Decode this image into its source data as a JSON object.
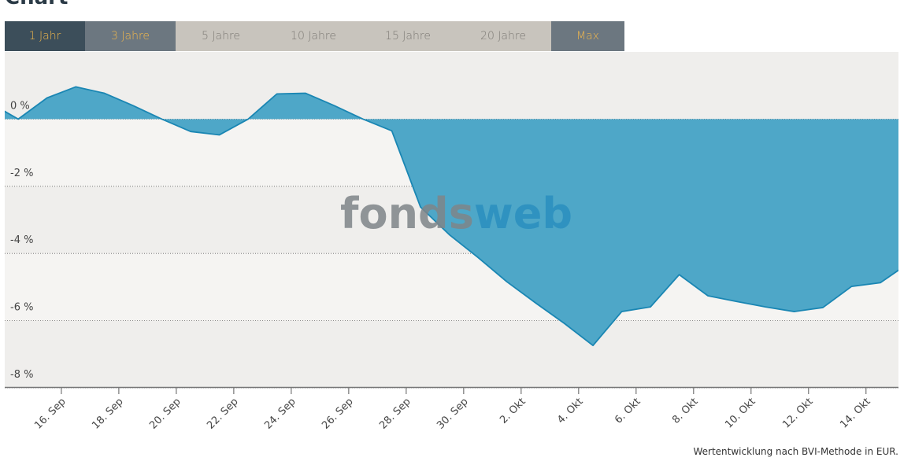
{
  "chart_data": {
    "type": "area",
    "title": "Chart",
    "buttons": [
      "1 Jahr",
      "3 Jahre",
      "5 Jahre",
      "10 Jahre",
      "15 Jahre",
      "20 Jahre",
      "Max"
    ],
    "watermark": [
      "fonds",
      "web"
    ],
    "footnote": "Wertentwicklung nach BVI-Methode in EUR.",
    "x": [
      -1,
      0,
      1,
      2,
      3,
      4,
      5,
      6,
      7,
      8,
      9,
      10,
      11,
      12,
      13,
      14,
      15,
      16,
      17,
      18,
      19,
      20,
      21,
      22,
      23,
      24,
      25,
      26,
      27,
      28,
      29,
      30,
      31
    ],
    "values": [
      0.49,
      0,
      0.63,
      0.96,
      0.77,
      0.4,
      0,
      -0.37,
      -0.47,
      0,
      0.75,
      0.77,
      0.4,
      0,
      -0.35,
      -2.62,
      -3.44,
      -4.12,
      -4.84,
      -5.47,
      -6.08,
      -6.74,
      -5.73,
      -5.59,
      -4.63,
      -5.26,
      -5.43,
      -5.59,
      -5.73,
      -5.61,
      -4.98,
      -4.87,
      -4.28
    ],
    "color": "#4ea7c8",
    "line_color": "#1a86b3",
    "xlim": [
      -0.47,
      30.63
    ],
    "xticks": [
      {
        "value": 1.5,
        "label": "16. Sep"
      },
      {
        "value": 3.5,
        "label": "18. Sep"
      },
      {
        "value": 5.5,
        "label": "20. Sep"
      },
      {
        "value": 7.5,
        "label": "22. Sep"
      },
      {
        "value": 9.5,
        "label": "24. Sep"
      },
      {
        "value": 11.5,
        "label": "26. Sep"
      },
      {
        "value": 13.5,
        "label": "28. Sep"
      },
      {
        "value": 15.5,
        "label": "30. Sep"
      },
      {
        "value": 17.5,
        "label": "2. Okt"
      },
      {
        "value": 19.5,
        "label": "4. Okt"
      },
      {
        "value": 21.5,
        "label": "6. Okt"
      },
      {
        "value": 23.5,
        "label": "8. Okt"
      },
      {
        "value": 25.5,
        "label": "10. Okt"
      },
      {
        "value": 27.5,
        "label": "12. Okt"
      },
      {
        "value": 29.5,
        "label": "14. Okt"
      }
    ],
    "ylim": [
      -8,
      2
    ],
    "yticks": [
      {
        "value": 0,
        "label": "0 %"
      },
      {
        "value": -2,
        "label": "-2 %"
      },
      {
        "value": -4,
        "label": "-4 %"
      },
      {
        "value": -6,
        "label": "-6 %"
      },
      {
        "value": -8,
        "label": "-8 %"
      }
    ],
    "grid": true
  }
}
